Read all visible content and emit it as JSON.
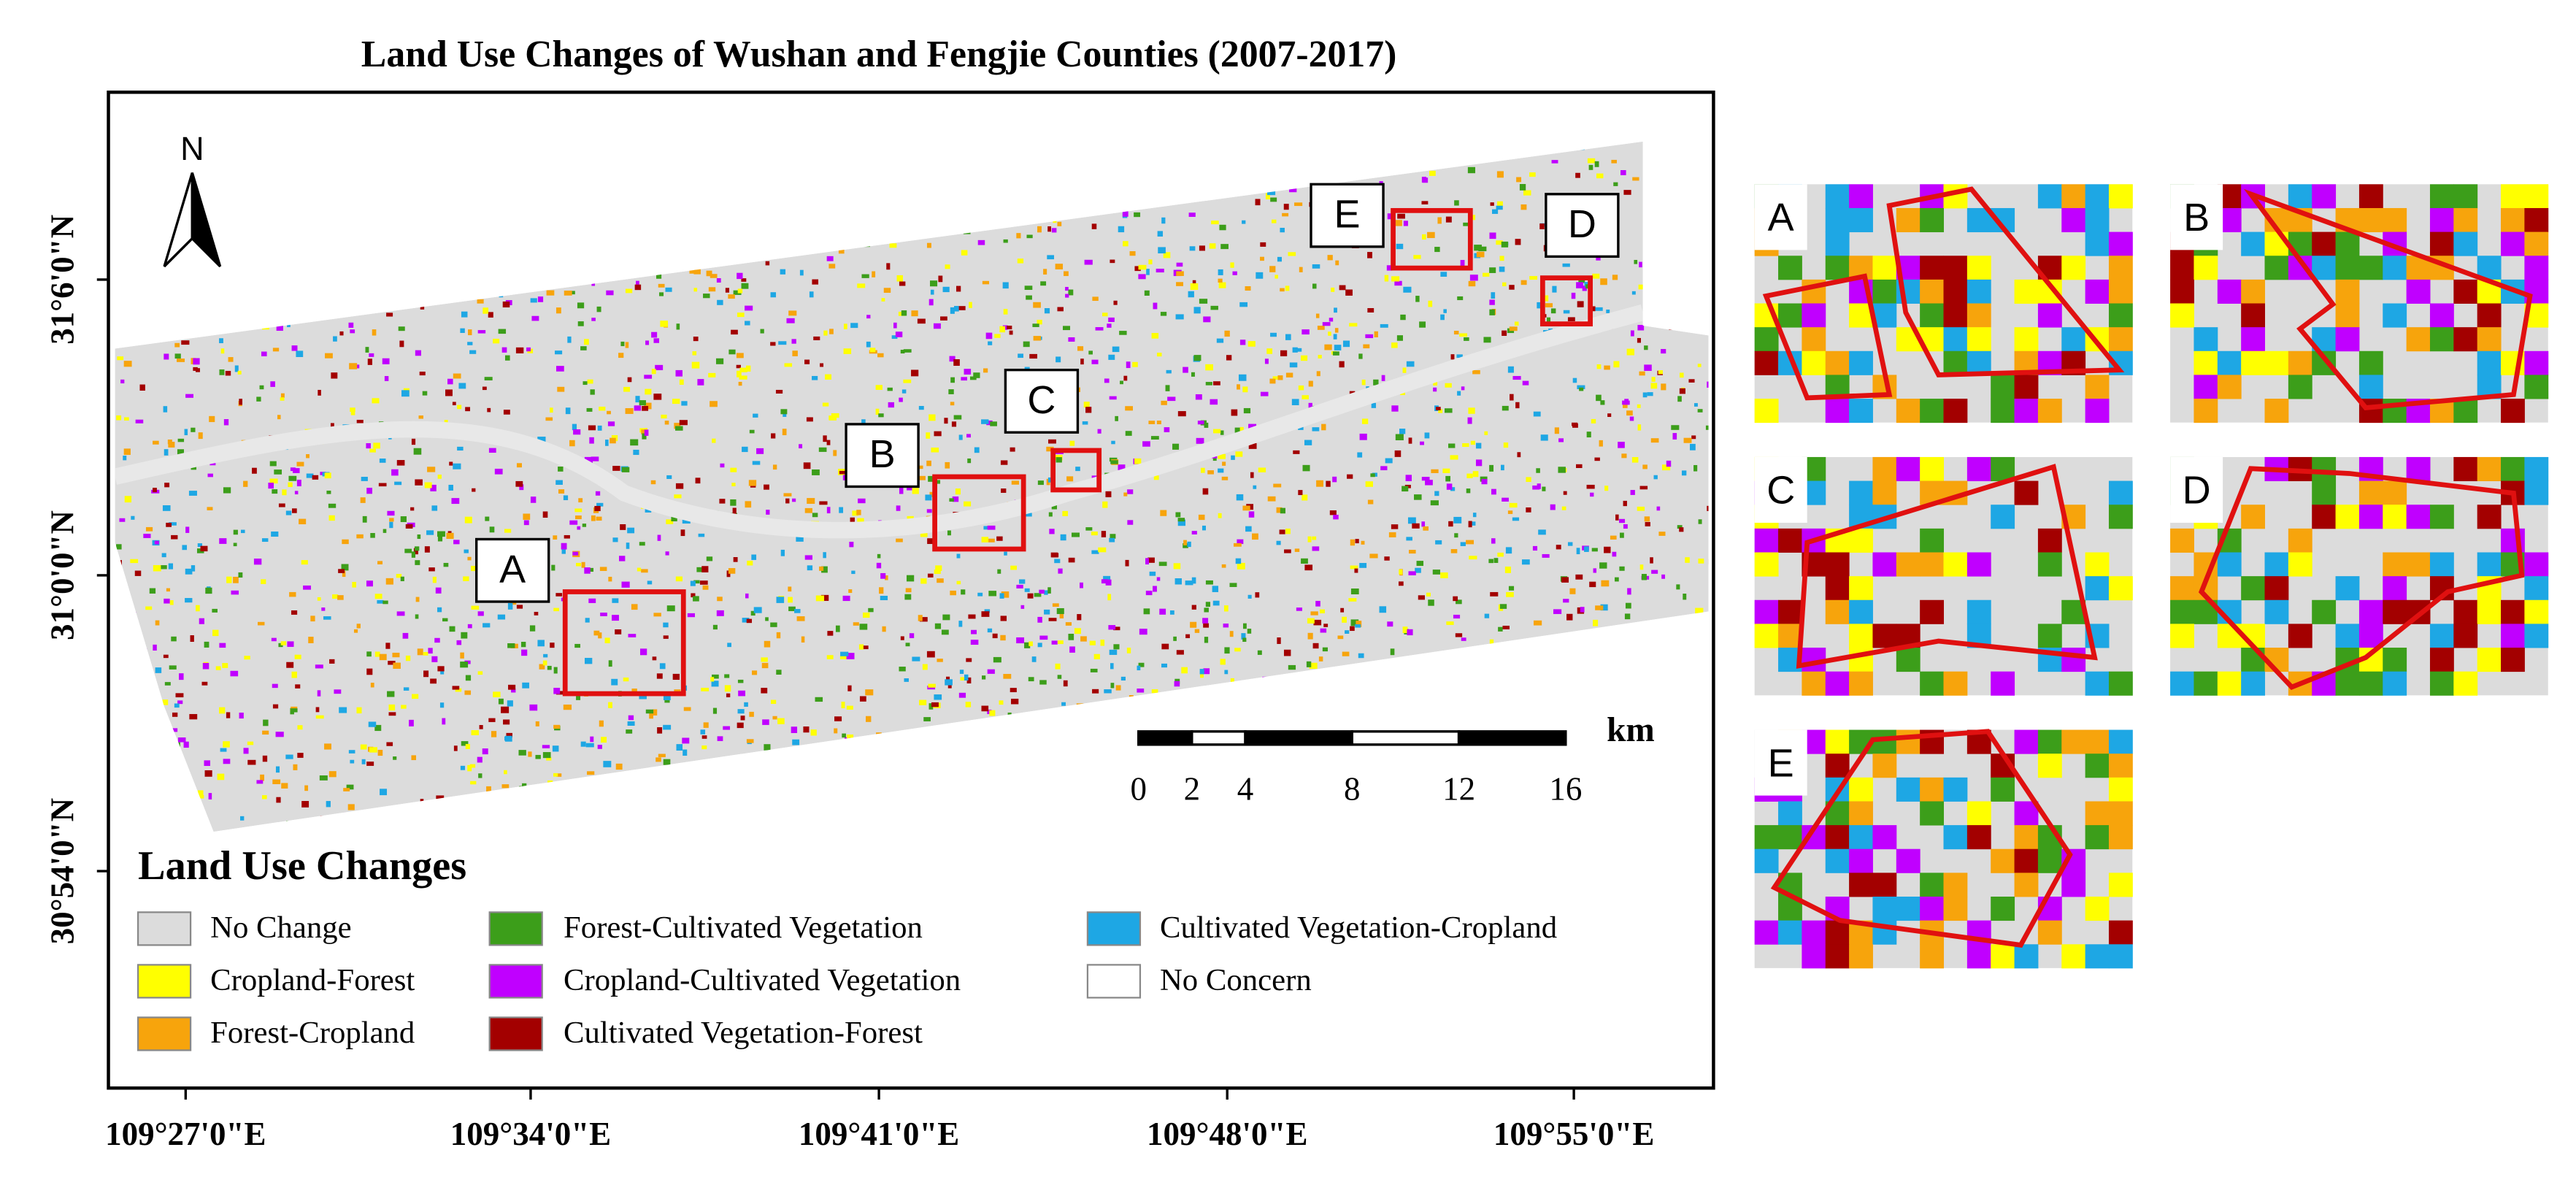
{
  "title": "Land Use Changes of Wushan and Fengjie Counties (2007-2017)",
  "north": "N",
  "legend": {
    "title": "Land Use Changes",
    "items": [
      {
        "label": "No Change",
        "color": "#dcdcdc"
      },
      {
        "label": "Cropland-Forest",
        "color": "#ffff00"
      },
      {
        "label": "Forest-Cropland",
        "color": "#f7a40c"
      },
      {
        "label": "Forest-Cultivated Vegetation",
        "color": "#3c9e1a"
      },
      {
        "label": "Cropland-Cultivated Vegetation",
        "color": "#c000ff"
      },
      {
        "label": "Cultivated Vegetation-Forest",
        "color": "#a30000"
      },
      {
        "label": "Cultivated Vegetation-Cropland",
        "color": "#1ea7e4"
      },
      {
        "label": "No Concern",
        "color": "#ffffff"
      }
    ]
  },
  "x_axis": {
    "labels": [
      "109°27'0\"E",
      "109°34'0\"E",
      "109°41'0\"E",
      "109°48'0\"E",
      "109°55'0\"E"
    ]
  },
  "y_axis": {
    "labels": [
      "31°6'0\"N",
      "31°0'0\"N",
      "30°54'0\"N"
    ]
  },
  "scale_bar": {
    "unit": "km",
    "ticks": [
      0,
      2,
      4,
      8,
      12,
      16
    ]
  },
  "map_labels": [
    "A",
    "B",
    "C",
    "D",
    "E"
  ],
  "insets": [
    {
      "label": "A"
    },
    {
      "label": "B"
    },
    {
      "label": "C"
    },
    {
      "label": "D"
    },
    {
      "label": "E"
    }
  ]
}
